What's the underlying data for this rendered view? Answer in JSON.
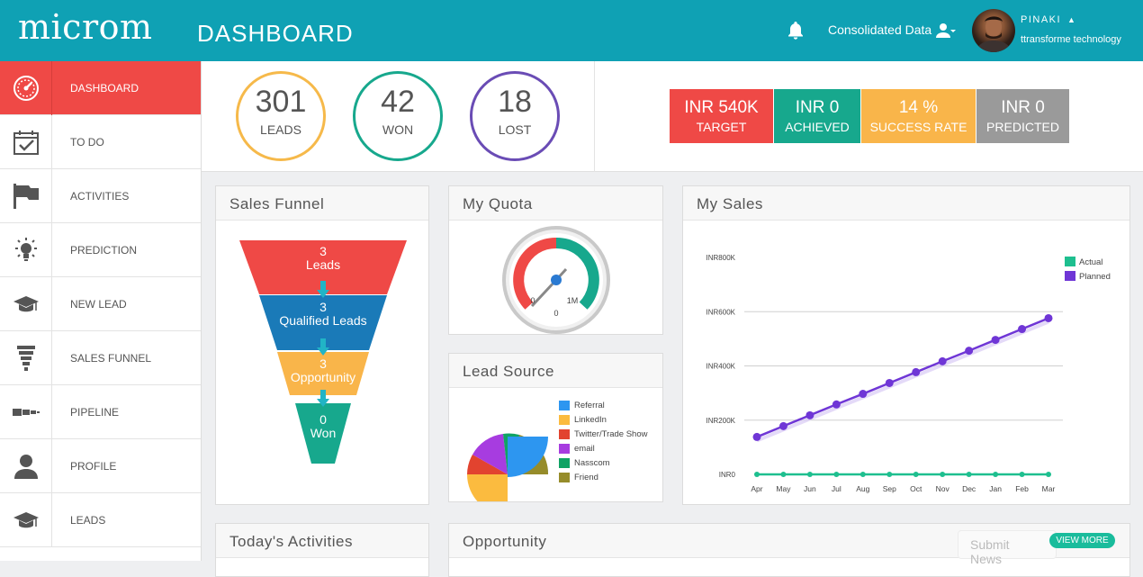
{
  "app": {
    "logo": "microm",
    "page_title": "DASHBOARD",
    "consolidated_label": "Consolidated Data",
    "user_name": "PINAKI",
    "user_company": "ttransforme technology"
  },
  "sidebar": {
    "items": [
      {
        "label": "DASHBOARD",
        "icon": "speedometer-icon",
        "active": true
      },
      {
        "label": "TO DO",
        "icon": "calendar-check-icon"
      },
      {
        "label": "ACTIVITIES",
        "icon": "flag-icon"
      },
      {
        "label": "PREDICTION",
        "icon": "lightbulb-icon"
      },
      {
        "label": "NEW LEAD",
        "icon": "graduation-cap-icon"
      },
      {
        "label": "SALES FUNNEL",
        "icon": "funnel-icon"
      },
      {
        "label": "PIPELINE",
        "icon": "pipeline-icon"
      },
      {
        "label": "PROFILE",
        "icon": "user-icon"
      },
      {
        "label": "LEADS",
        "icon": "graduation-cap-icon"
      }
    ]
  },
  "stats": [
    {
      "value": "301",
      "label": "LEADS",
      "color": "#f6b94a"
    },
    {
      "value": "42",
      "label": "WON",
      "color": "#17a88d"
    },
    {
      "value": "18",
      "label": "LOST",
      "color": "#6a4cb5"
    }
  ],
  "kpis": [
    {
      "value": "INR 540K",
      "label": "TARGET",
      "color": "#ef4946"
    },
    {
      "value": "INR 0",
      "label": "ACHIEVED",
      "color": "#17a88d"
    },
    {
      "value": "14 %",
      "label": "SUCCESS RATE",
      "color": "#f9b54a"
    },
    {
      "value": "INR 0",
      "label": "PREDICTED",
      "color": "#9a9a9a"
    }
  ],
  "panels": {
    "sales_funnel": "Sales Funnel",
    "my_quota": "My Quota",
    "lead_source": "Lead Source",
    "my_sales": "My Sales",
    "todays_activities": "Today's Activities",
    "opportunity": "Opportunity"
  },
  "funnel": [
    {
      "count": "3",
      "label": "Leads",
      "color": "#ef4946"
    },
    {
      "count": "3",
      "label": "Qualified Leads",
      "color": "#1a7ab8"
    },
    {
      "count": "3",
      "label": "Opportunity",
      "color": "#f9b54a"
    },
    {
      "count": "0",
      "label": "Won",
      "color": "#17a88d"
    }
  ],
  "quota": {
    "value": 0,
    "min_label": "0",
    "max_label": "1M",
    "value_label": "0"
  },
  "lead_source": {
    "items": [
      {
        "label": "Referral",
        "color": "#2d96f0"
      },
      {
        "label": "LinkedIn",
        "color": "#fbbb3f"
      },
      {
        "label": "Twitter/Trade Show",
        "color": "#e2432f"
      },
      {
        "label": "email",
        "color": "#a73ce0"
      },
      {
        "label": "Nasscom",
        "color": "#0fa364"
      },
      {
        "label": "Friend",
        "color": "#968c2a"
      }
    ]
  },
  "chart_data": {
    "type": "line",
    "title": "My Sales",
    "categories": [
      "Apr",
      "May",
      "Jun",
      "Jul",
      "Aug",
      "Sep",
      "Oct",
      "Nov",
      "Dec",
      "Jan",
      "Feb",
      "Mar"
    ],
    "y_tick_labels": [
      "INR800K",
      "INR600K",
      "INR400K",
      "INR200K",
      "INR0"
    ],
    "ylim": [
      0,
      800000
    ],
    "grid": true,
    "legend_position": "top-right",
    "series": [
      {
        "name": "Actual",
        "color": "#1ebf8f",
        "values": [
          0,
          0,
          0,
          0,
          0,
          0,
          0,
          0,
          0,
          0,
          0,
          0
        ]
      },
      {
        "name": "Planned",
        "color": "#6f36d6",
        "values": [
          138000,
          178000,
          218000,
          258000,
          297000,
          337000,
          377000,
          417000,
          456000,
          496000,
          536000,
          576000
        ]
      }
    ]
  },
  "bottom": {
    "submit_news": "Submit News",
    "view_more": "VIEW MORE"
  }
}
